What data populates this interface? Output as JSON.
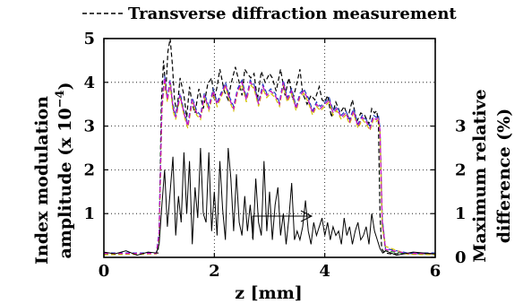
{
  "chart_data": {
    "type": "line",
    "title": "",
    "xlabel": "z [mm]",
    "ylabel_left_line1": "Index modulation",
    "ylabel_left_line2": "amplitude (x 10",
    "ylabel_left_sup": "−4",
    "ylabel_left_close": ")",
    "ylabel_right_line1": "Maximum relative",
    "ylabel_right_line2": "difference (%)",
    "xlim": [
      0,
      6
    ],
    "ylim_left": [
      0,
      5
    ],
    "ylim_right": [
      0,
      5
    ],
    "xticks": [
      "0",
      "2",
      "4",
      "6"
    ],
    "yticks_left": [
      "1",
      "2",
      "3",
      "4",
      "5"
    ],
    "yticks_right": [
      "0",
      "1",
      "2",
      "3"
    ],
    "grid": true,
    "legend": {
      "position": "top",
      "entry": "Transverse diffraction measurement"
    },
    "series": [
      {
        "name": "Transverse diffraction measurement",
        "axis": "left",
        "color": "#000000",
        "style": "dashed",
        "x": [
          0,
          0.3,
          0.6,
          0.9,
          0.98,
          1.0,
          1.04,
          1.08,
          1.12,
          1.16,
          1.2,
          1.24,
          1.28,
          1.32,
          1.38,
          1.45,
          1.5,
          1.55,
          1.6,
          1.65,
          1.72,
          1.8,
          1.88,
          1.95,
          2.0,
          2.05,
          2.1,
          2.18,
          2.25,
          2.3,
          2.38,
          2.45,
          2.5,
          2.55,
          2.6,
          2.66,
          2.72,
          2.78,
          2.85,
          2.92,
          3.0,
          3.05,
          3.12,
          3.2,
          3.28,
          3.35,
          3.42,
          3.5,
          3.55,
          3.6,
          3.68,
          3.75,
          3.82,
          3.9,
          3.95,
          4.0,
          4.05,
          4.12,
          4.2,
          4.28,
          4.35,
          4.42,
          4.5,
          4.58,
          4.65,
          4.72,
          4.8,
          4.85,
          4.9,
          4.94,
          4.97,
          5.0,
          5.03,
          5.08,
          5.2,
          5.5,
          6.0
        ],
        "y": [
          0.08,
          0.1,
          0.09,
          0.1,
          0.1,
          0.5,
          3.5,
          4.5,
          3.8,
          4.7,
          5.0,
          4.4,
          3.6,
          3.3,
          4.1,
          3.7,
          3.2,
          3.9,
          3.5,
          3.3,
          3.85,
          3.4,
          3.95,
          4.1,
          3.6,
          3.9,
          4.3,
          3.8,
          3.6,
          3.95,
          4.35,
          4.0,
          3.7,
          4.3,
          4.2,
          4.1,
          4.2,
          3.6,
          4.25,
          4.0,
          4.2,
          4.1,
          3.8,
          4.3,
          3.7,
          4.1,
          3.6,
          4.0,
          4.3,
          3.75,
          3.5,
          3.7,
          3.6,
          3.9,
          3.6,
          3.55,
          3.7,
          3.2,
          3.55,
          3.3,
          3.45,
          3.2,
          3.6,
          3.1,
          3.3,
          3.25,
          3.05,
          3.4,
          3.3,
          3.35,
          3.1,
          1.0,
          0.2,
          0.1,
          0.08,
          0.09,
          0.08
        ]
      },
      {
        "name": "",
        "axis": "left",
        "color": "#1a9a1a",
        "style": "dashed",
        "x": [
          0,
          0.5,
          0.95,
          1.0,
          1.05,
          1.1,
          1.15,
          1.2,
          1.25,
          1.3,
          1.38,
          1.45,
          1.52,
          1.6,
          1.68,
          1.75,
          1.82,
          1.9,
          1.98,
          2.05,
          2.12,
          2.2,
          2.28,
          2.35,
          2.42,
          2.5,
          2.58,
          2.65,
          2.72,
          2.8,
          2.88,
          2.95,
          3.02,
          3.1,
          3.18,
          3.25,
          3.32,
          3.4,
          3.48,
          3.55,
          3.62,
          3.7,
          3.78,
          3.85,
          3.92,
          4.0,
          4.08,
          4.15,
          4.22,
          4.3,
          4.38,
          4.45,
          4.52,
          4.6,
          4.68,
          4.75,
          4.82,
          4.88,
          4.93,
          4.97,
          5.0,
          5.04,
          5.1,
          5.5,
          6.0
        ],
        "y": [
          0.08,
          0.09,
          0.1,
          0.5,
          3.4,
          4.1,
          3.6,
          4.0,
          3.4,
          3.2,
          3.7,
          3.3,
          3.0,
          3.6,
          3.3,
          3.2,
          3.7,
          3.4,
          3.8,
          3.5,
          3.7,
          3.95,
          3.6,
          3.4,
          3.8,
          4.0,
          3.6,
          4.0,
          3.9,
          3.5,
          3.9,
          3.7,
          3.8,
          3.7,
          3.5,
          4.0,
          3.6,
          3.8,
          3.4,
          3.7,
          3.8,
          3.6,
          3.3,
          3.5,
          3.4,
          3.5,
          3.6,
          3.3,
          3.4,
          3.2,
          3.3,
          3.1,
          3.35,
          3.0,
          3.2,
          3.1,
          2.95,
          3.2,
          3.15,
          3.2,
          2.9,
          0.8,
          0.15,
          0.08,
          0.08
        ]
      },
      {
        "name": "",
        "axis": "left",
        "color": "#1f3fbf",
        "style": "dashed",
        "x": [
          0,
          0.5,
          0.95,
          1.0,
          1.05,
          1.1,
          1.15,
          1.2,
          1.25,
          1.3,
          1.38,
          1.45,
          1.52,
          1.6,
          1.68,
          1.75,
          1.82,
          1.9,
          1.98,
          2.05,
          2.12,
          2.2,
          2.28,
          2.35,
          2.42,
          2.5,
          2.58,
          2.65,
          2.72,
          2.8,
          2.88,
          2.95,
          3.02,
          3.1,
          3.18,
          3.25,
          3.32,
          3.4,
          3.48,
          3.55,
          3.62,
          3.7,
          3.78,
          3.85,
          3.92,
          4.0,
          4.08,
          4.15,
          4.22,
          4.3,
          4.38,
          4.45,
          4.52,
          4.6,
          4.68,
          4.75,
          4.82,
          4.88,
          4.93,
          4.97,
          5.0,
          5.04,
          5.1,
          5.5,
          6.0
        ],
        "y": [
          0.1,
          0.1,
          0.1,
          0.6,
          3.5,
          4.15,
          3.65,
          4.05,
          3.5,
          3.25,
          3.75,
          3.35,
          3.05,
          3.65,
          3.35,
          3.25,
          3.75,
          3.45,
          3.85,
          3.55,
          3.75,
          4.0,
          3.65,
          3.45,
          3.85,
          4.05,
          3.65,
          4.05,
          3.95,
          3.55,
          3.95,
          3.75,
          3.85,
          3.75,
          3.55,
          4.05,
          3.65,
          3.85,
          3.45,
          3.75,
          3.85,
          3.65,
          3.35,
          3.55,
          3.45,
          3.55,
          3.65,
          3.35,
          3.45,
          3.25,
          3.35,
          3.15,
          3.4,
          3.05,
          3.25,
          3.15,
          3.0,
          3.25,
          3.2,
          3.25,
          2.95,
          0.9,
          0.2,
          0.1,
          0.1
        ]
      },
      {
        "name": "",
        "axis": "left",
        "color": "#d4c000",
        "style": "dashed",
        "x": [
          0,
          0.5,
          0.95,
          1.0,
          1.05,
          1.1,
          1.15,
          1.2,
          1.25,
          1.3,
          1.38,
          1.45,
          1.52,
          1.6,
          1.68,
          1.75,
          1.82,
          1.9,
          1.98,
          2.05,
          2.12,
          2.2,
          2.28,
          2.35,
          2.42,
          2.5,
          2.58,
          2.65,
          2.72,
          2.8,
          2.88,
          2.95,
          3.02,
          3.1,
          3.18,
          3.25,
          3.32,
          3.4,
          3.48,
          3.55,
          3.62,
          3.7,
          3.78,
          3.85,
          3.92,
          4.0,
          4.08,
          4.15,
          4.22,
          4.3,
          4.38,
          4.45,
          4.52,
          4.6,
          4.68,
          4.75,
          4.82,
          4.88,
          4.93,
          4.97,
          5.0,
          5.04,
          5.1,
          5.5,
          6.0
        ],
        "y": [
          0.06,
          0.07,
          0.08,
          0.45,
          3.35,
          4.05,
          3.55,
          3.95,
          3.35,
          3.15,
          3.65,
          3.25,
          2.95,
          3.55,
          3.25,
          3.15,
          3.65,
          3.35,
          3.75,
          3.45,
          3.65,
          3.9,
          3.55,
          3.35,
          3.75,
          3.95,
          3.55,
          3.95,
          3.85,
          3.45,
          3.85,
          3.65,
          3.75,
          3.65,
          3.45,
          3.95,
          3.55,
          3.75,
          3.35,
          3.65,
          3.75,
          3.55,
          3.25,
          3.45,
          3.35,
          3.45,
          3.55,
          3.25,
          3.35,
          3.15,
          3.25,
          3.05,
          3.3,
          2.95,
          3.15,
          3.05,
          2.9,
          3.15,
          3.1,
          3.15,
          2.85,
          0.7,
          0.25,
          0.07,
          0.06
        ]
      },
      {
        "name": "",
        "axis": "left",
        "color": "#d10ad1",
        "style": "dashed",
        "x": [
          0,
          0.5,
          0.95,
          1.0,
          1.05,
          1.1,
          1.15,
          1.2,
          1.25,
          1.3,
          1.38,
          1.45,
          1.52,
          1.6,
          1.68,
          1.75,
          1.82,
          1.9,
          1.98,
          2.05,
          2.12,
          2.2,
          2.28,
          2.35,
          2.42,
          2.5,
          2.58,
          2.65,
          2.72,
          2.8,
          2.88,
          2.95,
          3.02,
          3.1,
          3.18,
          3.25,
          3.32,
          3.4,
          3.48,
          3.55,
          3.62,
          3.7,
          3.78,
          3.85,
          3.92,
          4.0,
          4.08,
          4.15,
          4.22,
          4.3,
          4.38,
          4.45,
          4.52,
          4.6,
          4.68,
          4.75,
          4.82,
          4.88,
          4.93,
          4.97,
          5.0,
          5.04,
          5.1,
          5.5,
          6.0
        ],
        "y": [
          0.09,
          0.09,
          0.09,
          0.55,
          3.45,
          4.1,
          3.6,
          4.0,
          3.45,
          3.2,
          3.7,
          3.3,
          3.0,
          3.6,
          3.3,
          3.2,
          3.7,
          3.4,
          3.8,
          3.5,
          3.7,
          3.95,
          3.6,
          3.4,
          3.8,
          4.0,
          3.6,
          4.0,
          3.9,
          3.5,
          3.9,
          3.7,
          3.8,
          3.7,
          3.5,
          4.0,
          3.6,
          3.8,
          3.4,
          3.7,
          3.8,
          3.6,
          3.3,
          3.5,
          3.4,
          3.5,
          3.6,
          3.3,
          3.4,
          3.2,
          3.3,
          3.1,
          3.35,
          3.0,
          3.2,
          3.1,
          2.95,
          3.2,
          3.15,
          3.2,
          2.9,
          0.85,
          0.18,
          0.09,
          0.09
        ]
      },
      {
        "name": "",
        "axis": "right",
        "color": "#000000",
        "style": "solid",
        "x": [
          0,
          0.2,
          0.4,
          0.6,
          0.8,
          0.95,
          1.0,
          1.05,
          1.1,
          1.15,
          1.2,
          1.25,
          1.3,
          1.35,
          1.4,
          1.45,
          1.5,
          1.55,
          1.6,
          1.65,
          1.7,
          1.75,
          1.8,
          1.85,
          1.9,
          1.95,
          2.0,
          2.05,
          2.1,
          2.15,
          2.2,
          2.25,
          2.3,
          2.35,
          2.4,
          2.45,
          2.5,
          2.55,
          2.6,
          2.65,
          2.7,
          2.75,
          2.8,
          2.85,
          2.9,
          2.95,
          3.0,
          3.05,
          3.1,
          3.15,
          3.2,
          3.25,
          3.3,
          3.35,
          3.4,
          3.45,
          3.5,
          3.55,
          3.6,
          3.65,
          3.7,
          3.75,
          3.8,
          3.85,
          3.9,
          3.95,
          4.0,
          4.05,
          4.1,
          4.15,
          4.2,
          4.25,
          4.3,
          4.35,
          4.4,
          4.45,
          4.5,
          4.55,
          4.6,
          4.65,
          4.7,
          4.75,
          4.8,
          4.85,
          4.9,
          4.95,
          5.0,
          5.05,
          5.1,
          5.3,
          5.6,
          6.0
        ],
        "y": [
          0.12,
          0.08,
          0.15,
          0.05,
          0.12,
          0.1,
          0.3,
          1.2,
          2.0,
          0.7,
          1.5,
          2.3,
          0.5,
          1.4,
          0.8,
          2.4,
          1.0,
          2.2,
          0.3,
          1.6,
          0.9,
          2.5,
          1.0,
          0.8,
          2.4,
          0.6,
          1.5,
          0.5,
          2.2,
          1.1,
          0.4,
          2.5,
          1.8,
          0.6,
          1.9,
          0.8,
          0.5,
          1.4,
          0.6,
          1.2,
          0.4,
          1.8,
          0.8,
          0.5,
          2.2,
          0.6,
          1.5,
          0.4,
          1.2,
          1.6,
          0.5,
          1.0,
          0.3,
          0.9,
          1.7,
          0.4,
          0.6,
          0.4,
          0.7,
          1.3,
          0.6,
          0.3,
          0.8,
          0.5,
          0.7,
          0.9,
          0.5,
          0.8,
          0.4,
          0.7,
          0.5,
          0.6,
          0.3,
          0.9,
          0.5,
          0.7,
          0.3,
          0.6,
          0.8,
          0.4,
          0.5,
          0.7,
          0.3,
          1.0,
          0.6,
          0.4,
          0.2,
          0.1,
          0.15,
          0.05,
          0.12,
          0.08
        ]
      }
    ],
    "annotation": "arrow pointing right toward right axis"
  },
  "colors": {
    "axis": "#000000",
    "grid": "#000000",
    "background": "#ffffff"
  }
}
